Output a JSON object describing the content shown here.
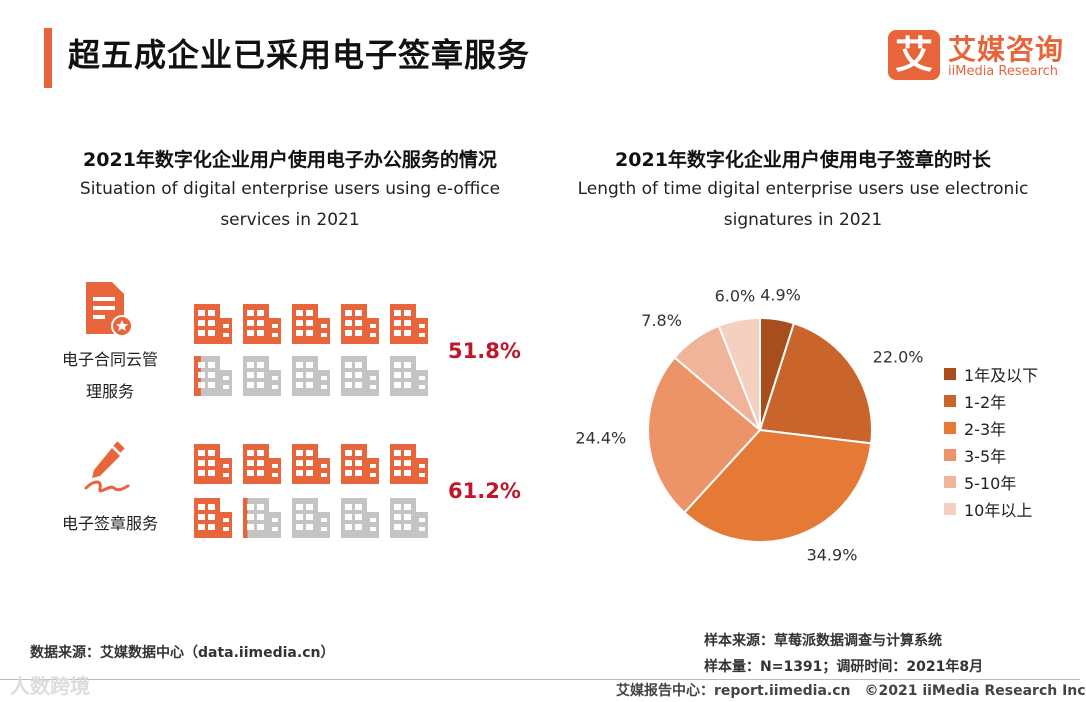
{
  "page": {
    "title": "超五成企业已采用电子签章服务",
    "logo_mark": "艾",
    "logo_cn": "艾媒咨询",
    "logo_en": "iiMedia Research"
  },
  "left_section": {
    "title_cn": "2021年数字化企业用户使用电子办公服务的情况",
    "title_en_1": "Situation of digital enterprise users using e-office",
    "title_en_2": "services in 2021"
  },
  "right_section": {
    "title_cn": "2021年数字化企业用户使用电子签章的时长",
    "title_en_1": "Length of time digital enterprise users use electronic",
    "title_en_2": "signatures in 2021"
  },
  "footer": {
    "source": "数据来源：艾媒数据中心（data.iimedia.cn）",
    "sample_source": "样本来源：草莓派数据调查与计算系统",
    "sample_size": "样本量：N=1391；调研时间：2021年8月",
    "bottom": "艾媒报告中心：report.iimedia.cn　©2021  iiMedia Research  Inc",
    "watermark": "人数跨境"
  },
  "colors": {
    "accent": "#e8643a",
    "pct_red": "#c0152a",
    "icon_fill": "#e8643a",
    "icon_empty": "#c4c4c4"
  },
  "chart_data": [
    {
      "type": "pictograph",
      "title": "2021年数字化企业用户使用电子办公服务的情况",
      "icons_per_row": 10,
      "items": [
        {
          "label_1": "电子合同云管",
          "label_2": "理服务",
          "value": 51.8,
          "value_label": "51.8%"
        },
        {
          "label_1": "电子签章服务",
          "label_2": "",
          "value": 61.2,
          "value_label": "61.2%"
        }
      ]
    },
    {
      "type": "pie",
      "title": "2021年数字化企业用户使用电子签章的时长",
      "slices": [
        {
          "name": "1年及以下",
          "value": 4.9,
          "label": "4.9%",
          "color": "#a84d1c"
        },
        {
          "name": "1-2年",
          "value": 22.0,
          "label": "22.0%",
          "color": "#c9652a"
        },
        {
          "name": "2-3年",
          "value": 34.9,
          "label": "34.9%",
          "color": "#e57a37"
        },
        {
          "name": "3-5年",
          "value": 24.4,
          "label": "24.4%",
          "color": "#ec9468"
        },
        {
          "name": "5-10年",
          "value": 7.8,
          "label": "7.8%",
          "color": "#f0b49a"
        },
        {
          "name": "10年以上",
          "value": 6.0,
          "label": "6.0%",
          "color": "#f5cfbf"
        }
      ]
    }
  ]
}
